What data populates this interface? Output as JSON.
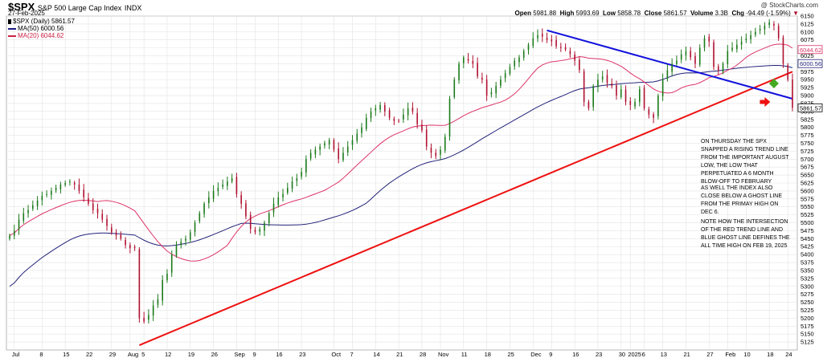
{
  "header": {
    "ticker": "$SPX",
    "ticker_name": "S&P 500 Large Cap Index",
    "exchange": "INDX",
    "date": "27-Feb-2025",
    "copyright": "@ StockCharts.com",
    "open_label": "Open",
    "open": "5981.88",
    "high_label": "High",
    "high": "5993.69",
    "low_label": "Low",
    "low": "5858.78",
    "close_label": "Close",
    "close": "5861.57",
    "volume_label": "Volume",
    "volume": "3.3B",
    "chg_label": "Chg",
    "chg": "-94.49 (-1.59%)",
    "chg_arrow": "▼"
  },
  "legend": [
    {
      "text": "$SPX (Daily) 5861.57",
      "color": "#000000"
    },
    {
      "text": "MA(50) 6000.56",
      "color": "#1a1a80"
    },
    {
      "text": "MA(20) 6044.62",
      "color": "#cc2244"
    }
  ],
  "annotations": [
    "ON THURSDAY THE SPX SNAPPED A RISING TREND LINE FROM THE IMPORTANT AUGUST LOW, THE LOW THAT PERPETUATED A 6 MONTH BLOW-OFF TO FEBRUARY",
    "AS WELL THE INDEX ALSO CLOSE BELOW A GHOST LINE FROM THE PRIMAY HIGH ON DEC 6.",
    "NOTE HOW THE INTERSECTION OF THE RED TREND LINE AND BLUE GHOST LINE DEFINES THE ALL TIME HIGH ON FEB 19, 2025"
  ],
  "colors": {
    "up": "#1a7a1a",
    "down": "#b01030",
    "ma20": "#dd3366",
    "ma50": "#22227a",
    "trend_red": "#ee1111",
    "trend_blue": "#1111dd",
    "grid": "#e3e3e3",
    "marker_green": "#44aa22",
    "marker_red": "#ee1111"
  },
  "chart_data": {
    "type": "candlestick",
    "y_axis": {
      "min": 5100,
      "max": 6150,
      "step": 25,
      "side": "right"
    },
    "y_ticks": [
      6150,
      6125,
      6100,
      6075,
      6050,
      6025,
      6000,
      5975,
      5950,
      5925,
      5900,
      5875,
      5850,
      5825,
      5800,
      5775,
      5750,
      5725,
      5700,
      5675,
      5650,
      5625,
      5600,
      5575,
      5550,
      5525,
      5500,
      5475,
      5450,
      5425,
      5400,
      5375,
      5350,
      5325,
      5300,
      5275,
      5250,
      5225,
      5200,
      5175,
      5150,
      5125
    ],
    "x_labels": [
      {
        "i": 1,
        "text": "Jul"
      },
      {
        "i": 7,
        "text": "8"
      },
      {
        "i": 12,
        "text": "15"
      },
      {
        "i": 17,
        "text": "22"
      },
      {
        "i": 22,
        "text": "29"
      },
      {
        "i": 26,
        "text": "Aug"
      },
      {
        "i": 29,
        "text": "5"
      },
      {
        "i": 34,
        "text": "12"
      },
      {
        "i": 39,
        "text": "19"
      },
      {
        "i": 44,
        "text": "26"
      },
      {
        "i": 49,
        "text": "Sep"
      },
      {
        "i": 53,
        "text": "9"
      },
      {
        "i": 58,
        "text": "16"
      },
      {
        "i": 63,
        "text": "23"
      },
      {
        "i": 70,
        "text": "Oct"
      },
      {
        "i": 74,
        "text": "7"
      },
      {
        "i": 79,
        "text": "14"
      },
      {
        "i": 84,
        "text": "21"
      },
      {
        "i": 89,
        "text": "28"
      },
      {
        "i": 93,
        "text": "Nov"
      },
      {
        "i": 98,
        "text": "11"
      },
      {
        "i": 103,
        "text": "18"
      },
      {
        "i": 108,
        "text": "25"
      },
      {
        "i": 113,
        "text": "Dec"
      },
      {
        "i": 117,
        "text": "9"
      },
      {
        "i": 122,
        "text": "16"
      },
      {
        "i": 127,
        "text": "23"
      },
      {
        "i": 132,
        "text": "30"
      },
      {
        "i": 134,
        "text": "2025"
      },
      {
        "i": 137,
        "text": "6"
      },
      {
        "i": 141,
        "text": "13"
      },
      {
        "i": 146,
        "text": "21"
      },
      {
        "i": 151,
        "text": "27"
      },
      {
        "i": 155,
        "text": "Feb"
      },
      {
        "i": 159,
        "text": "10"
      },
      {
        "i": 164,
        "text": "18"
      },
      {
        "i": 168,
        "text": "24"
      }
    ],
    "closes": [
      5460,
      5475,
      5510,
      5530,
      5540,
      5555,
      5570,
      5585,
      5590,
      5600,
      5610,
      5620,
      5625,
      5630,
      5620,
      5600,
      5580,
      5560,
      5540,
      5530,
      5510,
      5490,
      5470,
      5460,
      5450,
      5430,
      5420,
      5420,
      5200,
      5190,
      5210,
      5240,
      5260,
      5320,
      5340,
      5400,
      5430,
      5440,
      5450,
      5470,
      5500,
      5530,
      5560,
      5580,
      5600,
      5610,
      5620,
      5630,
      5640,
      5590,
      5560,
      5520,
      5480,
      5470,
      5480,
      5500,
      5530,
      5560,
      5580,
      5590,
      5610,
      5630,
      5640,
      5660,
      5700,
      5720,
      5730,
      5740,
      5750,
      5760,
      5730,
      5700,
      5720,
      5740,
      5760,
      5780,
      5800,
      5830,
      5850,
      5860,
      5870,
      5850,
      5830,
      5820,
      5820,
      5840,
      5860,
      5850,
      5810,
      5790,
      5740,
      5720,
      5710,
      5730,
      5770,
      5890,
      5950,
      6000,
      6020,
      6010,
      6000,
      5960,
      5950,
      5900,
      5910,
      5930,
      5950,
      5970,
      5990,
      6010,
      6020,
      6040,
      6060,
      6080,
      6090,
      6085,
      6075,
      6070,
      6055,
      6050,
      6045,
      6030,
      6010,
      5980,
      5880,
      5860,
      5930,
      5950,
      5960,
      5940,
      5930,
      5900,
      5920,
      5880,
      5870,
      5880,
      5920,
      5860,
      5840,
      5830,
      5900,
      5950,
      5980,
      6000,
      6010,
      6030,
      6040,
      6020,
      6000,
      6050,
      6080,
      6070,
      5990,
      5980,
      6000,
      6040,
      6050,
      6060,
      6070,
      6080,
      6090,
      6100,
      6110,
      6120,
      6130,
      6120,
      6080,
      6000,
      5950,
      5861.57
    ]
  }
}
